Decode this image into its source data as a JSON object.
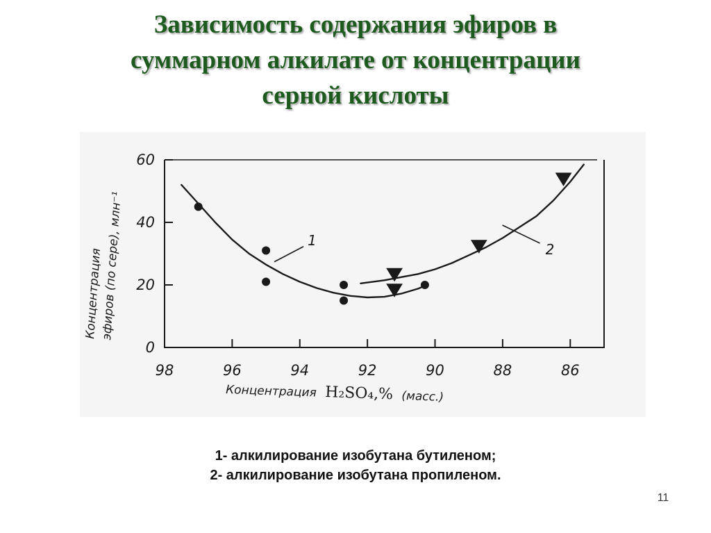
{
  "slide": {
    "title_lines": [
      "Зависимость содержания эфиров в",
      "суммарном алкилате от концентрации",
      "серной кислоты"
    ],
    "legend_lines": [
      "1- алкилирование изобутана бутиленом;",
      "2- алкилирование изобутана пропиленом."
    ],
    "page_number": "11"
  },
  "chart_data": {
    "type": "scatter",
    "ylabel_lines": [
      "Концентрация",
      "эфиров (по сере), млн⁻¹"
    ],
    "xlabel_text": "Концентрация",
    "xlabel_formula": "H₂SO₄,%",
    "xlabel_unit": "(масс.)",
    "xlim": [
      98,
      85
    ],
    "ylim": [
      0,
      60
    ],
    "x_reversed": true,
    "x_ticks": [
      98,
      96,
      94,
      92,
      90,
      88,
      86
    ],
    "y_ticks": [
      0,
      20,
      40,
      60
    ],
    "series": [
      {
        "name": "1",
        "marker": "circle",
        "points": [
          [
            97,
            45
          ],
          [
            95,
            31
          ],
          [
            95,
            21
          ],
          [
            92.7,
            20
          ],
          [
            92.7,
            15
          ],
          [
            90.3,
            20
          ]
        ],
        "curve": [
          [
            97.5,
            52
          ],
          [
            97,
            46
          ],
          [
            96.5,
            40
          ],
          [
            96,
            34.5
          ],
          [
            95.5,
            30
          ],
          [
            95,
            26.5
          ],
          [
            94.5,
            23.5
          ],
          [
            94,
            21
          ],
          [
            93.5,
            19
          ],
          [
            93,
            17.5
          ],
          [
            92.5,
            16.5
          ],
          [
            92,
            16
          ],
          [
            91.5,
            16.2
          ],
          [
            91,
            17.2
          ],
          [
            90.5,
            18.8
          ],
          [
            90.3,
            19.7
          ]
        ]
      },
      {
        "name": "2",
        "marker": "triangle-down",
        "points": [
          [
            91.2,
            23.5
          ],
          [
            91.2,
            18.5
          ],
          [
            88.7,
            32.5
          ],
          [
            86.2,
            54
          ]
        ],
        "curve": [
          [
            92.2,
            20.5
          ],
          [
            91.5,
            21.5
          ],
          [
            91,
            22.5
          ],
          [
            90.5,
            23.5
          ],
          [
            90,
            25
          ],
          [
            89.5,
            27
          ],
          [
            89,
            29.5
          ],
          [
            88.5,
            32
          ],
          [
            88,
            35
          ],
          [
            87.5,
            38.5
          ],
          [
            87,
            42
          ],
          [
            86.5,
            47
          ],
          [
            86,
            53
          ],
          [
            85.6,
            58.5
          ]
        ]
      }
    ]
  }
}
